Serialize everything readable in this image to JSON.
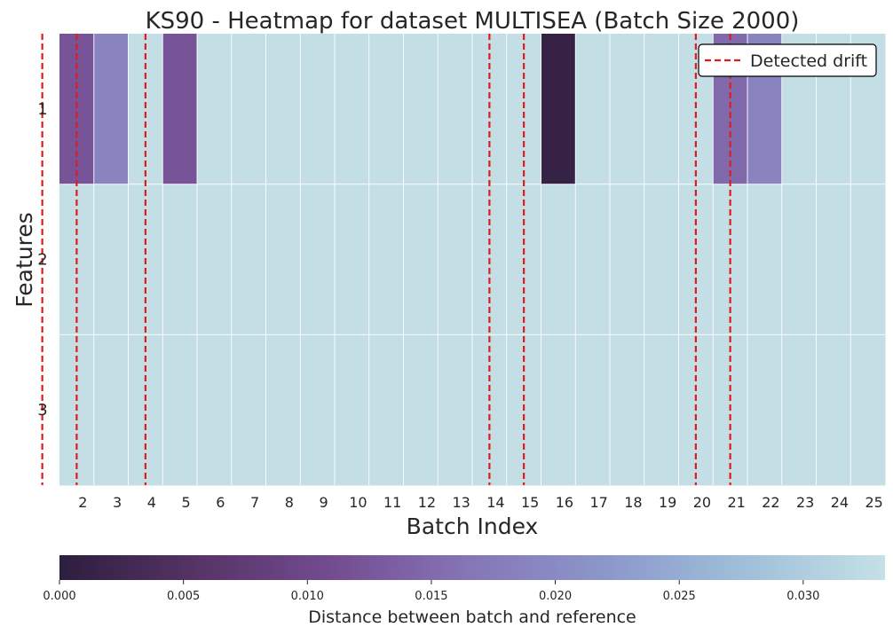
{
  "chart_data": {
    "type": "heatmap",
    "title": "KS90 - Heatmap for dataset MULTISEA (Batch Size 2000)",
    "xlabel": "Batch Index",
    "ylabel": "Features",
    "x_tick_labels": [
      "2",
      "3",
      "4",
      "5",
      "6",
      "7",
      "8",
      "9",
      "10",
      "11",
      "12",
      "13",
      "14",
      "15",
      "16",
      "17",
      "18",
      "19",
      "20",
      "21",
      "22",
      "23",
      "24",
      "25"
    ],
    "y_tick_labels": [
      "1",
      "2",
      "3"
    ],
    "columns": 24,
    "values": [
      [
        0.012,
        0.019,
        0.033,
        0.012,
        0.033,
        0.033,
        0.033,
        0.033,
        0.033,
        0.033,
        0.033,
        0.033,
        0.033,
        0.033,
        0.001,
        0.033,
        0.033,
        0.033,
        0.033,
        0.015,
        0.019,
        0.033,
        0.033,
        0.033
      ],
      [
        0.033,
        0.033,
        0.033,
        0.033,
        0.033,
        0.033,
        0.033,
        0.033,
        0.033,
        0.033,
        0.033,
        0.033,
        0.033,
        0.033,
        0.033,
        0.033,
        0.033,
        0.033,
        0.033,
        0.033,
        0.033,
        0.033,
        0.033,
        0.033
      ],
      [
        0.033,
        0.033,
        0.033,
        0.033,
        0.033,
        0.033,
        0.033,
        0.033,
        0.033,
        0.033,
        0.033,
        0.033,
        0.033,
        0.033,
        0.033,
        0.033,
        0.033,
        0.033,
        0.033,
        0.033,
        0.033,
        0.033,
        0.033,
        0.033
      ]
    ],
    "detected_drift_batches": [
      2,
      3,
      5,
      15,
      16,
      21,
      22
    ],
    "drift_line_color": "#e31a1c",
    "legend": {
      "label": "Detected drift",
      "placement": "top-right"
    },
    "colorbar": {
      "label": "Distance between batch and reference",
      "min": 0.0,
      "max": 0.0333,
      "ticks": [
        "0.000",
        "0.005",
        "0.010",
        "0.015",
        "0.020",
        "0.025",
        "0.030"
      ],
      "colormap": [
        "#2d1e3e",
        "#573366",
        "#744c91",
        "#8676b8",
        "#8c98cb",
        "#a0c0da",
        "#c5e0e6"
      ]
    },
    "grid": true
  }
}
